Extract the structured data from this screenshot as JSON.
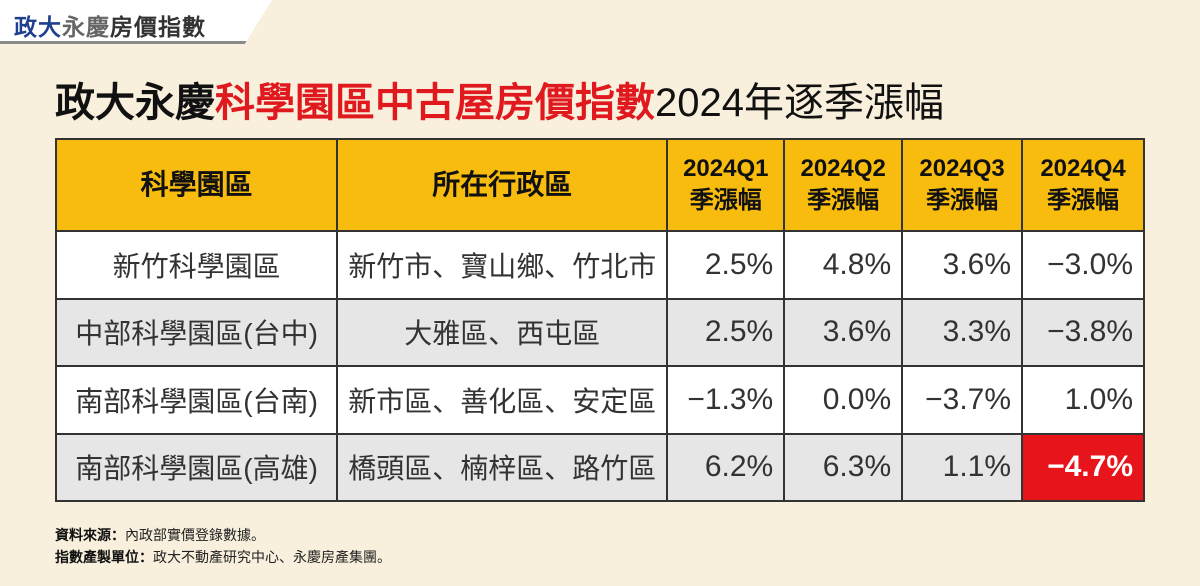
{
  "logo": {
    "part1": "政大",
    "part2": "永慶",
    "part3": "房價指數"
  },
  "title": {
    "part1": "政大永慶",
    "part2": "科學園區中古屋房價指數",
    "part3": "2024年逐季漲幅"
  },
  "chart_data": {
    "type": "table",
    "columns": [
      "科學園區",
      "所在行政區",
      "2024Q1 季漲幅",
      "2024Q2 季漲幅",
      "2024Q3 季漲幅",
      "2024Q4 季漲幅"
    ],
    "header": [
      {
        "line1": "科學園區",
        "line2": ""
      },
      {
        "line1": "所在行政區",
        "line2": ""
      },
      {
        "line1": "2024Q1",
        "line2": "季漲幅"
      },
      {
        "line1": "2024Q2",
        "line2": "季漲幅"
      },
      {
        "line1": "2024Q3",
        "line2": "季漲幅"
      },
      {
        "line1": "2024Q4",
        "line2": "季漲幅"
      }
    ],
    "rows": [
      {
        "park": "新竹科學園區",
        "district": "新竹市、寶山鄉、竹北市",
        "values": [
          "2.5%",
          "4.8%",
          "3.6%",
          "−3.0%"
        ]
      },
      {
        "park": "中部科學園區(台中)",
        "district": "大雅區、西屯區",
        "values": [
          "2.5%",
          "3.6%",
          "3.3%",
          "−3.8%"
        ]
      },
      {
        "park": "南部科學園區(台南)",
        "district": "新市區、善化區、安定區",
        "values": [
          "−1.3%",
          "0.0%",
          "−3.7%",
          "1.0%"
        ]
      },
      {
        "park": "南部科學園區(高雄)",
        "district": "橋頭區、楠梓區、路竹區",
        "values": [
          "6.2%",
          "6.3%",
          "1.1%",
          "−4.7%"
        ]
      }
    ],
    "highlight": {
      "row": 3,
      "col": 3,
      "color": "#e8141b"
    }
  },
  "footer": {
    "source_label": "資料來源：",
    "source": "內政部實價登錄數據。",
    "maker_label": "指數產製單位：",
    "maker": "政大不動產研究中心、永慶房產集團。"
  }
}
